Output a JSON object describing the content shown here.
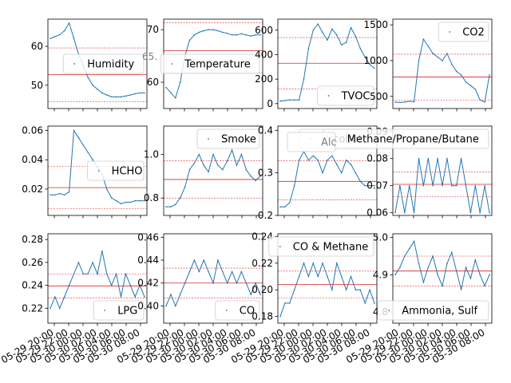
{
  "colors": {
    "data": "#1f77b4",
    "mean": "#d62728",
    "axes": "#000000",
    "legend_border": "#cccccc"
  },
  "chart_data": [
    {
      "type": "line",
      "title": "",
      "xlabel": "",
      "ylabel": "",
      "series": [
        {
          "name": "Humidity",
          "values": [
            62,
            62.5,
            63,
            64,
            66,
            62,
            58,
            55,
            52,
            50,
            49,
            48,
            47.5,
            47,
            47,
            47,
            47.2,
            47.5,
            47.8,
            48,
            48
          ]
        }
      ],
      "ylim": [
        44,
        67
      ],
      "yticks": [
        50,
        60
      ],
      "yticklabels": [
        "50",
        "60"
      ],
      "mean": 52.7,
      "std_lines": [
        45.8,
        59.6
      ],
      "legend": "center-right"
    },
    {
      "type": "line",
      "title": "",
      "xlabel": "",
      "ylabel": "",
      "series": [
        {
          "name": "Temperature",
          "values": [
            59,
            58,
            57,
            60,
            65,
            68,
            69,
            69.5,
            69.8,
            70,
            70,
            69.8,
            69.5,
            69.3,
            69,
            69,
            69.2,
            69,
            68.8,
            69,
            69
          ]
        }
      ],
      "ylim": [
        55,
        72
      ],
      "yticks": [
        60,
        70
      ],
      "yticklabels": [
        "60",
        "70"
      ],
      "mean": 66.0,
      "std_lines": [
        61.8,
        71.3
      ],
      "legend": "center-right"
    },
    {
      "type": "line",
      "title": "",
      "xlabel": "",
      "ylabel": "",
      "series": [
        {
          "name": "TVOC",
          "values": [
            20,
            25,
            30,
            30,
            30,
            200,
            450,
            600,
            650,
            580,
            520,
            610,
            560,
            480,
            500,
            620,
            550,
            450,
            380,
            320,
            290
          ]
        }
      ],
      "ylim": [
        -40,
        690
      ],
      "yticks": [
        0,
        200,
        400,
        600
      ],
      "yticklabels": [
        "0",
        "200",
        "400",
        "600"
      ],
      "mean": 330,
      "std_lines": [
        120,
        540
      ],
      "legend": "lower-right"
    },
    {
      "type": "line",
      "title": "",
      "xlabel": "",
      "ylabel": "",
      "series": [
        {
          "name": "CO2",
          "values": [
            420,
            415,
            420,
            430,
            425,
            1000,
            1300,
            1200,
            1100,
            1050,
            1000,
            1100,
            950,
            850,
            800,
            700,
            650,
            600,
            450,
            420,
            800
          ]
        }
      ],
      "ylim": [
        330,
        1580
      ],
      "yticks": [
        500,
        1000,
        1500
      ],
      "yticklabels": [
        "500",
        "1000",
        "1500"
      ],
      "mean": 770,
      "std_lines": [
        450,
        1090
      ],
      "legend": "upper-right"
    },
    {
      "type": "line",
      "title": "",
      "xlabel": "",
      "ylabel": "",
      "series": [
        {
          "name": "HCHO",
          "values": [
            0.016,
            0.016,
            0.017,
            0.016,
            0.018,
            0.06,
            0.055,
            0.05,
            0.045,
            0.04,
            0.035,
            0.03,
            0.02,
            0.014,
            0.012,
            0.01,
            0.011,
            0.011,
            0.012,
            0.012,
            0.012
          ]
        }
      ],
      "ylim": [
        0.002,
        0.063
      ],
      "yticks": [
        0.02,
        0.04,
        0.06
      ],
      "yticklabels": [
        "0.02",
        "0.04",
        "0.06"
      ],
      "mean": 0.021,
      "std_lines": [
        0.0065,
        0.0355
      ],
      "legend": "center-right"
    },
    {
      "type": "line",
      "title": "",
      "xlabel": "",
      "ylabel": "",
      "series": [
        {
          "name": "Smoke",
          "values": [
            0.76,
            0.76,
            0.77,
            0.8,
            0.85,
            0.93,
            0.96,
            1.0,
            0.95,
            0.92,
            1.0,
            0.95,
            0.93,
            0.97,
            1.02,
            0.95,
            1.0,
            0.93,
            0.9,
            0.88,
            0.9
          ]
        }
      ],
      "ylim": [
        0.72,
        1.13
      ],
      "yticks": [
        0.8,
        1.0
      ],
      "yticklabels": [
        "0.8",
        "1.0"
      ],
      "mean": 0.885,
      "std_lines": [
        0.8,
        0.97
      ],
      "legend": "upper-right"
    },
    {
      "type": "line",
      "title": "",
      "xlabel": "",
      "ylabel": "",
      "series": [
        {
          "name": "Alcohol",
          "values": [
            0.22,
            0.22,
            0.23,
            0.27,
            0.33,
            0.35,
            0.33,
            0.34,
            0.33,
            0.3,
            0.33,
            0.34,
            0.32,
            0.3,
            0.33,
            0.32,
            0.3,
            0.28,
            0.27,
            0.27,
            0.27
          ]
        }
      ],
      "ylim": [
        0.2,
        0.41
      ],
      "yticks": [
        0.2,
        0.3,
        0.4
      ],
      "yticklabels": [
        "0.2",
        "0.3",
        "0.4"
      ],
      "mean": 0.28,
      "std_lines": [
        0.237,
        0.328
      ],
      "legend": "upper-right"
    },
    {
      "type": "line",
      "title": "",
      "xlabel": "",
      "ylabel": "",
      "series": [
        {
          "name": "Methane/Propane/Butane",
          "values": [
            0.06,
            0.07,
            0.06,
            0.07,
            0.06,
            0.08,
            0.07,
            0.08,
            0.07,
            0.08,
            0.07,
            0.08,
            0.07,
            0.07,
            0.08,
            0.07,
            0.06,
            0.07,
            0.06,
            0.07,
            0.06
          ]
        }
      ],
      "ylim": [
        0.059,
        0.092
      ],
      "yticks": [
        0.06,
        0.07,
        0.08,
        0.09
      ],
      "yticklabels": [
        "0.06",
        "0.07",
        "0.08",
        "0.09"
      ],
      "mean": 0.0705,
      "std_lines": [
        0.066,
        0.075
      ],
      "legend": "upper-right"
    },
    {
      "type": "line",
      "title": "",
      "xlabel": "",
      "ylabel": "",
      "series": [
        {
          "name": "LPG",
          "values": [
            0.22,
            0.23,
            0.22,
            0.23,
            0.24,
            0.25,
            0.26,
            0.25,
            0.25,
            0.26,
            0.25,
            0.27,
            0.25,
            0.24,
            0.25,
            0.23,
            0.25,
            0.24,
            0.23,
            0.24,
            0.23
          ]
        }
      ],
      "ylim": [
        0.207,
        0.285
      ],
      "yticks": [
        0.22,
        0.24,
        0.26,
        0.28
      ],
      "yticklabels": [
        "0.22",
        "0.24",
        "0.26",
        "0.28"
      ],
      "mean": 0.2395,
      "std_lines": [
        0.229,
        0.25
      ],
      "legend": "lower-right"
    },
    {
      "type": "line",
      "title": "",
      "xlabel": "",
      "ylabel": "",
      "series": [
        {
          "name": "CO",
          "values": [
            0.4,
            0.41,
            0.4,
            0.41,
            0.42,
            0.43,
            0.44,
            0.43,
            0.44,
            0.43,
            0.42,
            0.44,
            0.43,
            0.42,
            0.43,
            0.42,
            0.43,
            0.42,
            0.41,
            0.42,
            0.41
          ]
        }
      ],
      "ylim": [
        0.385,
        0.463
      ],
      "yticks": [
        0.4,
        0.42,
        0.44,
        0.46
      ],
      "yticklabels": [
        "0.40",
        "0.42",
        "0.44",
        "0.46"
      ],
      "mean": 0.42,
      "std_lines": [
        0.407,
        0.433
      ],
      "legend": "lower-right"
    },
    {
      "type": "line",
      "title": "",
      "xlabel": "",
      "ylabel": "",
      "series": [
        {
          "name": "CO & Methane",
          "values": [
            0.18,
            0.19,
            0.19,
            0.2,
            0.21,
            0.22,
            0.21,
            0.22,
            0.21,
            0.22,
            0.21,
            0.2,
            0.22,
            0.21,
            0.2,
            0.21,
            0.2,
            0.2,
            0.19,
            0.2,
            0.19
          ]
        }
      ],
      "ylim": [
        0.175,
        0.242
      ],
      "yticks": [
        0.18,
        0.2,
        0.22,
        0.24
      ],
      "yticklabels": [
        "0.18",
        "0.20",
        "0.22",
        "0.24"
      ],
      "mean": 0.204,
      "std_lines": [
        0.194,
        0.214
      ],
      "legend": "upper-right"
    },
    {
      "type": "line",
      "title": "",
      "xlabel": "",
      "ylabel": "",
      "series": [
        {
          "name": "Ammonia, Sulf",
          "values": [
            4.9,
            4.92,
            4.95,
            4.97,
            4.99,
            4.93,
            4.88,
            4.92,
            4.95,
            4.9,
            4.87,
            4.93,
            4.96,
            4.91,
            4.86,
            4.92,
            4.89,
            4.94,
            4.9,
            4.87,
            4.9
          ]
        }
      ],
      "ylim": [
        4.77,
        5.01
      ],
      "yticks": [
        4.8,
        4.9,
        5.0
      ],
      "yticklabels": [
        "4.8",
        "4.9",
        "5.0"
      ],
      "mean": 4.91,
      "std_lines": [
        4.87,
        4.95
      ],
      "legend": "lower-right"
    }
  ],
  "xticklabels": [
    "05-29 20:00",
    "05-29 22:00",
    "05-30 00:00",
    "05-30 02:00",
    "05-30 04:00",
    "05-30 06:00",
    "05-30 08:00"
  ],
  "overlap_labels": {
    "alcohol_fragment": "Alc",
    "temperature_fragment": "65."
  }
}
